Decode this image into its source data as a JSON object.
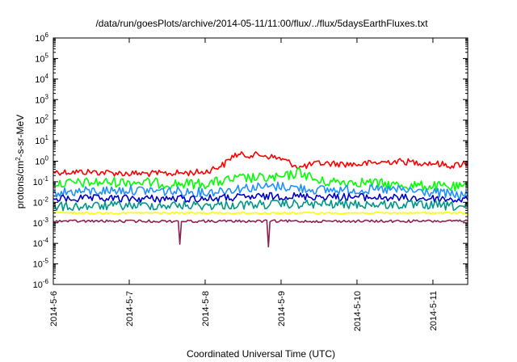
{
  "chart_data": {
    "type": "line",
    "title": "/data/run/goesPlots/archive/2014-05-11/11:00/flux/../flux/5daysEarthFluxes.txt",
    "xlabel": "Coordinated Universal Time (UTC)",
    "ylabel": "protons/cm²-s-sr-MeV",
    "ylabel_base": "protons/cm",
    "ylabel_sup": "2",
    "ylabel_rest": "-s-sr-MeV",
    "yscale": "log",
    "ylim": [
      1e-06,
      1000000.0
    ],
    "yticks": [
      {
        "base": "10",
        "exp": "-6"
      },
      {
        "base": "10",
        "exp": "-5"
      },
      {
        "base": "10",
        "exp": "-4"
      },
      {
        "base": "10",
        "exp": "-3"
      },
      {
        "base": "10",
        "exp": "-2"
      },
      {
        "base": "10",
        "exp": "-1"
      },
      {
        "base": "10",
        "exp": "0"
      },
      {
        "base": "10",
        "exp": "1"
      },
      {
        "base": "10",
        "exp": "2"
      },
      {
        "base": "10",
        "exp": "3"
      },
      {
        "base": "10",
        "exp": "4"
      },
      {
        "base": "10",
        "exp": "5"
      },
      {
        "base": "10",
        "exp": "6"
      }
    ],
    "xlim": [
      "2014-05-06T00:00",
      "2014-05-11T11:00"
    ],
    "xticks": [
      "2014-5-6",
      "2014-5-7",
      "2014-5-8",
      "2014-5-9",
      "2014-5-10",
      "2014-5-11"
    ],
    "xtick_dates": [
      "2014-05-06",
      "2014-05-07",
      "2014-05-08",
      "2014-05-09",
      "2014-05-10",
      "2014-05-11"
    ],
    "grid": false,
    "legend": "none",
    "series": [
      {
        "color": "#ff0000",
        "x": [
          "2014-05-06T00:00",
          "2014-05-06T12:00",
          "2014-05-07T00:00",
          "2014-05-07T12:00",
          "2014-05-08T00:00",
          "2014-05-08T06:00",
          "2014-05-08T09:00",
          "2014-05-08T18:00",
          "2014-05-09T00:00",
          "2014-05-09T06:00",
          "2014-05-09T12:00",
          "2014-05-10T00:00",
          "2014-05-10T12:00",
          "2014-05-11T00:00",
          "2014-05-11T06:00",
          "2014-05-11T11:00"
        ],
        "values": [
          0.3,
          0.3,
          0.25,
          0.25,
          0.3,
          0.7,
          2,
          2,
          1.3,
          0.5,
          0.8,
          0.7,
          1,
          0.8,
          0.6,
          0.8
        ]
      },
      {
        "color": "#00ff00",
        "x": [
          "2014-05-06T00:00",
          "2014-05-06T12:00",
          "2014-05-07T00:00",
          "2014-05-07T12:00",
          "2014-05-08T00:00",
          "2014-05-08T12:00",
          "2014-05-09T00:00",
          "2014-05-09T06:00",
          "2014-05-09T12:00",
          "2014-05-10T00:00",
          "2014-05-10T12:00",
          "2014-05-11T00:00",
          "2014-05-11T11:00"
        ],
        "values": [
          0.08,
          0.09,
          0.1,
          0.08,
          0.08,
          0.15,
          0.15,
          0.3,
          0.1,
          0.1,
          0.07,
          0.06,
          0.05
        ]
      },
      {
        "color": "#1e90ff",
        "x": [
          "2014-05-06T00:00",
          "2014-05-07T00:00",
          "2014-05-08T00:00",
          "2014-05-08T12:00",
          "2014-05-09T00:00",
          "2014-05-09T12:00",
          "2014-05-10T00:00",
          "2014-05-10T12:00",
          "2014-05-11T00:00",
          "2014-05-11T11:00"
        ],
        "values": [
          0.03,
          0.04,
          0.03,
          0.05,
          0.06,
          0.04,
          0.04,
          0.04,
          0.03,
          0.02
        ]
      },
      {
        "color": "#0000cc",
        "x": [
          "2014-05-06T00:00",
          "2014-05-07T00:00",
          "2014-05-08T00:00",
          "2014-05-09T00:00",
          "2014-05-10T00:00",
          "2014-05-11T00:00",
          "2014-05-11T11:00"
        ],
        "values": [
          0.015,
          0.015,
          0.015,
          0.02,
          0.018,
          0.015,
          0.013
        ]
      },
      {
        "color": "#009688",
        "x": [
          "2014-05-06T00:00",
          "2014-05-07T00:00",
          "2014-05-08T00:00",
          "2014-05-09T00:00",
          "2014-05-10T00:00",
          "2014-05-11T00:00",
          "2014-05-11T11:00"
        ],
        "values": [
          0.006,
          0.007,
          0.007,
          0.008,
          0.008,
          0.007,
          0.006
        ]
      },
      {
        "color": "#ffff00",
        "x": [
          "2014-05-06T00:00",
          "2014-05-07T00:00",
          "2014-05-08T00:00",
          "2014-05-09T00:00",
          "2014-05-10T00:00",
          "2014-05-11T00:00",
          "2014-05-11T11:00"
        ],
        "values": [
          0.003,
          0.003,
          0.003,
          0.003,
          0.003,
          0.003,
          0.003
        ]
      },
      {
        "color": "#8b2252",
        "x": [
          "2014-05-06T00:00",
          "2014-05-07T00:00",
          "2014-05-07T15:30",
          "2014-05-07T16:00",
          "2014-05-07T16:30",
          "2014-05-08T00:00",
          "2014-05-08T19:30",
          "2014-05-08T20:00",
          "2014-05-08T20:30",
          "2014-05-09T00:00",
          "2014-05-10T00:00",
          "2014-05-11T00:00",
          "2014-05-11T11:00"
        ],
        "values": [
          0.0012,
          0.0012,
          0.0012,
          0.0001,
          0.0012,
          0.0012,
          0.0012,
          7e-05,
          0.0012,
          0.0012,
          0.0012,
          0.0012,
          0.0012
        ]
      }
    ]
  }
}
